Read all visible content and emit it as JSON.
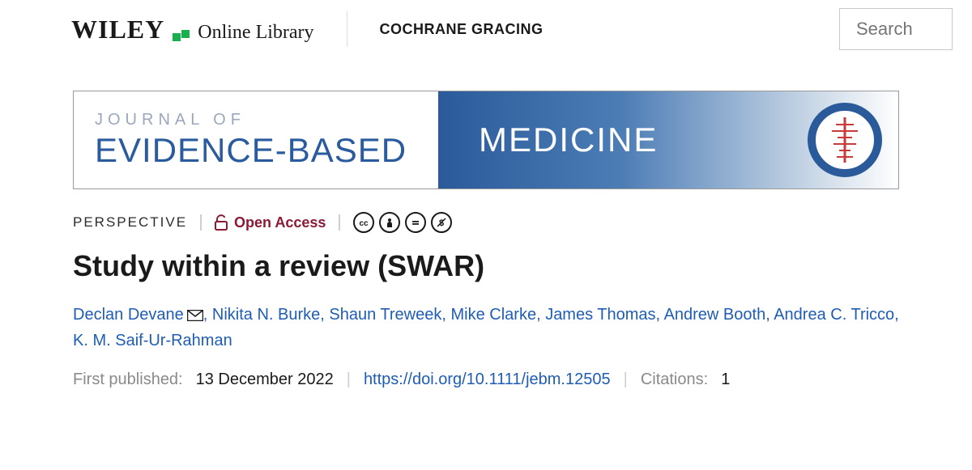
{
  "topbar": {
    "brand_main": "WILEY",
    "brand_sub": "Online Library",
    "publisher": "COCHRANE GRACING",
    "search_placeholder": "Search"
  },
  "banner": {
    "pretitle": "JOURNAL OF",
    "title_part1": "EVIDENCE-BASED",
    "title_part2": "MEDICINE",
    "colors": {
      "accent_blue": "#2a5b9e",
      "grad_start": "#2a5a9a",
      "grad_mid": "#4d7db5",
      "circle_accent": "#c93a3a"
    }
  },
  "meta": {
    "article_type": "PERSPECTIVE",
    "open_access_label": "Open Access",
    "license_icons": [
      "cc",
      "by",
      "nd",
      "nc"
    ]
  },
  "article": {
    "title": "Study within a review (SWAR)",
    "authors": [
      "Declan Devane",
      "Nikita N. Burke",
      "Shaun Treweek",
      "Mike Clarke",
      "James Thomas",
      "Andrew Booth",
      "Andrea C. Tricco",
      "K. M. Saif-Ur-Rahman"
    ],
    "corresponding_index": 0
  },
  "pubinfo": {
    "first_published_label": "First published:",
    "first_published_date": "13 December 2022",
    "doi_url": "https://doi.org/10.1111/jebm.12505",
    "citations_label": "Citations:",
    "citations_count": "1"
  },
  "colors": {
    "link": "#1f5db5",
    "open_access": "#8a1a36",
    "text": "#1a1a1a",
    "muted": "#8a8a8a"
  }
}
